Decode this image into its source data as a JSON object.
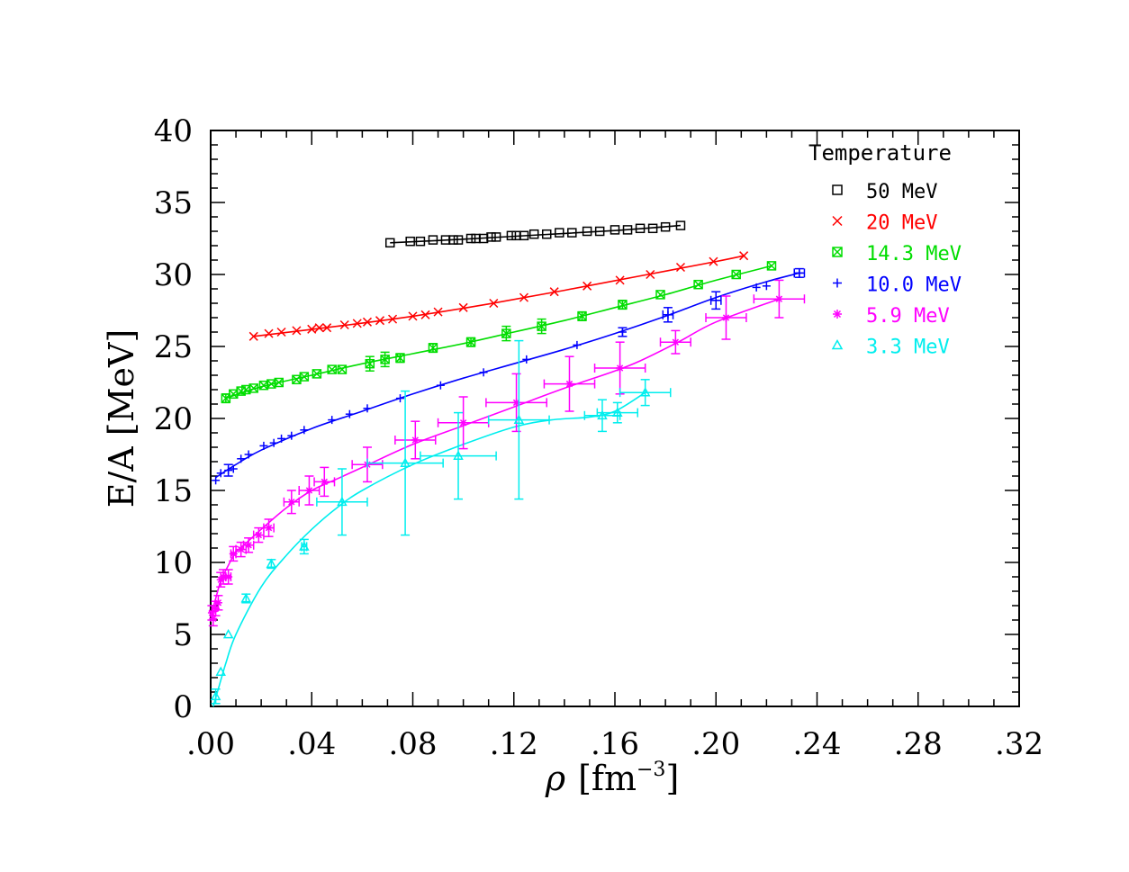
{
  "chart_data": {
    "type": "scatter",
    "title": "",
    "xlabel": {
      "symbol": "ρ",
      "unit_prefix": "[fm",
      "unit_exp": "−3",
      "unit_suffix": "]"
    },
    "ylabel": "E/A  [MeV]",
    "xlim": [
      0,
      0.32
    ],
    "ylim": [
      0,
      40
    ],
    "x_ticks": [
      ".00",
      ".04",
      ".08",
      ".12",
      ".16",
      ".20",
      ".24",
      ".28",
      ".32"
    ],
    "y_ticks": [
      "0",
      "5",
      "10",
      "15",
      "20",
      "25",
      "30",
      "35",
      "40"
    ],
    "legend_title": "Temperature",
    "legend_position": "top-right",
    "series": [
      {
        "name": "50 MeV",
        "color": "#000000",
        "marker": "square",
        "points": [
          [
            0.071,
            32.2,
            0,
            0
          ],
          [
            0.079,
            32.3,
            0,
            0
          ],
          [
            0.083,
            32.3,
            0,
            0
          ],
          [
            0.088,
            32.4,
            0,
            0
          ],
          [
            0.093,
            32.4,
            0,
            0
          ],
          [
            0.096,
            32.4,
            0,
            0
          ],
          [
            0.098,
            32.4,
            0,
            0
          ],
          [
            0.103,
            32.5,
            0,
            0
          ],
          [
            0.105,
            32.5,
            0,
            0
          ],
          [
            0.108,
            32.5,
            0,
            0
          ],
          [
            0.111,
            32.6,
            0,
            0
          ],
          [
            0.113,
            32.6,
            0,
            0
          ],
          [
            0.119,
            32.7,
            0,
            0
          ],
          [
            0.121,
            32.7,
            0,
            0
          ],
          [
            0.124,
            32.7,
            0,
            0
          ],
          [
            0.128,
            32.8,
            0,
            0
          ],
          [
            0.133,
            32.8,
            0,
            0
          ],
          [
            0.138,
            32.9,
            0,
            0
          ],
          [
            0.143,
            32.9,
            0,
            0
          ],
          [
            0.149,
            33.0,
            0,
            0
          ],
          [
            0.154,
            33.0,
            0,
            0
          ],
          [
            0.16,
            33.1,
            0,
            0
          ],
          [
            0.165,
            33.1,
            0,
            0
          ],
          [
            0.17,
            33.2,
            0,
            0
          ],
          [
            0.175,
            33.2,
            0,
            0
          ],
          [
            0.18,
            33.3,
            0,
            0
          ],
          [
            0.186,
            33.4,
            0,
            0
          ]
        ],
        "curve": [
          [
            0.071,
            32.2
          ],
          [
            0.1,
            32.45
          ],
          [
            0.13,
            32.75
          ],
          [
            0.16,
            33.05
          ],
          [
            0.186,
            33.4
          ]
        ]
      },
      {
        "name": "20 MeV",
        "color": "#ff0000",
        "marker": "cross",
        "points": [
          [
            0.017,
            25.7,
            0,
            0
          ],
          [
            0.023,
            25.9,
            0,
            0
          ],
          [
            0.028,
            26.0,
            0,
            0
          ],
          [
            0.034,
            26.1,
            0,
            0
          ],
          [
            0.04,
            26.2,
            0,
            0
          ],
          [
            0.043,
            26.3,
            0,
            0
          ],
          [
            0.046,
            26.3,
            0,
            0
          ],
          [
            0.053,
            26.5,
            0,
            0
          ],
          [
            0.058,
            26.6,
            0,
            0
          ],
          [
            0.062,
            26.7,
            0,
            0
          ],
          [
            0.067,
            26.8,
            0,
            0
          ],
          [
            0.072,
            26.9,
            0,
            0
          ],
          [
            0.08,
            27.1,
            0,
            0
          ],
          [
            0.085,
            27.2,
            0,
            0
          ],
          [
            0.09,
            27.4,
            0,
            0
          ],
          [
            0.1,
            27.7,
            0,
            0
          ],
          [
            0.112,
            28.0,
            0,
            0
          ],
          [
            0.124,
            28.4,
            0,
            0
          ],
          [
            0.136,
            28.8,
            0,
            0
          ],
          [
            0.149,
            29.2,
            0,
            0
          ],
          [
            0.162,
            29.6,
            0,
            0
          ],
          [
            0.174,
            30.0,
            0,
            0
          ],
          [
            0.186,
            30.5,
            0,
            0
          ],
          [
            0.199,
            30.9,
            0,
            0
          ],
          [
            0.211,
            31.3,
            0,
            0
          ]
        ],
        "curve": [
          [
            0.017,
            25.7
          ],
          [
            0.05,
            26.4
          ],
          [
            0.08,
            27.1
          ],
          [
            0.11,
            27.95
          ],
          [
            0.14,
            28.9
          ],
          [
            0.17,
            29.9
          ],
          [
            0.2,
            30.9
          ],
          [
            0.211,
            31.3
          ]
        ]
      },
      {
        "name": "14.3 MeV",
        "color": "#00dd00",
        "marker": "boxcross",
        "points": [
          [
            0.006,
            21.4,
            0,
            0.3
          ],
          [
            0.009,
            21.7,
            0,
            0
          ],
          [
            0.012,
            21.9,
            0,
            0
          ],
          [
            0.014,
            22.0,
            0,
            0
          ],
          [
            0.017,
            22.1,
            0,
            0
          ],
          [
            0.021,
            22.3,
            0,
            0
          ],
          [
            0.024,
            22.4,
            0,
            0
          ],
          [
            0.027,
            22.5,
            0,
            0
          ],
          [
            0.034,
            22.7,
            0,
            0
          ],
          [
            0.037,
            22.9,
            0,
            0
          ],
          [
            0.042,
            23.1,
            0,
            0
          ],
          [
            0.048,
            23.4,
            0,
            0
          ],
          [
            0.052,
            23.4,
            0,
            0
          ],
          [
            0.063,
            23.8,
            0,
            0.5
          ],
          [
            0.069,
            24.1,
            0,
            0.5
          ],
          [
            0.075,
            24.2,
            0,
            0.3
          ],
          [
            0.088,
            24.9,
            0,
            0.3
          ],
          [
            0.103,
            25.3,
            0,
            0.3
          ],
          [
            0.117,
            25.9,
            0,
            0.5
          ],
          [
            0.131,
            26.4,
            0,
            0.5
          ],
          [
            0.147,
            27.1,
            0,
            0.3
          ],
          [
            0.163,
            27.9,
            0,
            0.3
          ],
          [
            0.178,
            28.6,
            0,
            0
          ],
          [
            0.193,
            29.3,
            0,
            0
          ],
          [
            0.208,
            30.0,
            0,
            0
          ],
          [
            0.222,
            30.6,
            0,
            0
          ]
        ],
        "curve": [
          [
            0.006,
            21.4
          ],
          [
            0.02,
            22.2
          ],
          [
            0.04,
            23.0
          ],
          [
            0.06,
            23.8
          ],
          [
            0.08,
            24.5
          ],
          [
            0.1,
            25.2
          ],
          [
            0.12,
            26.0
          ],
          [
            0.14,
            26.8
          ],
          [
            0.16,
            27.7
          ],
          [
            0.18,
            28.6
          ],
          [
            0.2,
            29.6
          ],
          [
            0.222,
            30.6
          ]
        ]
      },
      {
        "name": "10.0 MeV",
        "color": "#0000ff",
        "marker": "plus",
        "points": [
          [
            0.002,
            15.7,
            0,
            0
          ],
          [
            0.004,
            16.2,
            0,
            0
          ],
          [
            0.007,
            16.4,
            0,
            0.4
          ],
          [
            0.009,
            16.5,
            0,
            0
          ],
          [
            0.012,
            17.2,
            0,
            0
          ],
          [
            0.015,
            17.5,
            0,
            0
          ],
          [
            0.021,
            18.1,
            0,
            0
          ],
          [
            0.025,
            18.3,
            0,
            0
          ],
          [
            0.028,
            18.6,
            0,
            0
          ],
          [
            0.032,
            18.8,
            0,
            0
          ],
          [
            0.037,
            19.2,
            0,
            0
          ],
          [
            0.048,
            19.9,
            0,
            0
          ],
          [
            0.055,
            20.3,
            0,
            0
          ],
          [
            0.062,
            20.7,
            0,
            0
          ],
          [
            0.075,
            21.4,
            0,
            0
          ],
          [
            0.091,
            22.3,
            0,
            0
          ],
          [
            0.108,
            23.2,
            0,
            0
          ],
          [
            0.125,
            24.1,
            0,
            0
          ],
          [
            0.145,
            25.1,
            0,
            0
          ],
          [
            0.163,
            26.0,
            0,
            0.3
          ],
          [
            0.181,
            27.2,
            0.002,
            0.5
          ],
          [
            0.2,
            28.2,
            0.002,
            0.6
          ],
          [
            0.216,
            29.1,
            0,
            0
          ],
          [
            0.22,
            29.2,
            0,
            0
          ],
          [
            0.233,
            30.1,
            0.002,
            0.3
          ]
        ],
        "curve": [
          [
            0.002,
            15.9
          ],
          [
            0.01,
            16.8
          ],
          [
            0.02,
            17.8
          ],
          [
            0.04,
            19.3
          ],
          [
            0.06,
            20.5
          ],
          [
            0.08,
            21.7
          ],
          [
            0.1,
            22.8
          ],
          [
            0.12,
            23.8
          ],
          [
            0.14,
            24.8
          ],
          [
            0.16,
            25.9
          ],
          [
            0.18,
            27.1
          ],
          [
            0.2,
            28.4
          ],
          [
            0.22,
            29.5
          ],
          [
            0.233,
            30.1
          ]
        ]
      },
      {
        "name": "5.9 MeV",
        "color": "#ff00ff",
        "marker": "asterisk",
        "points": [
          [
            0.0005,
            6.5,
            0,
            0.5
          ],
          [
            0.001,
            6.1,
            0,
            0.5
          ],
          [
            0.002,
            6.8,
            0,
            0.5
          ],
          [
            0.003,
            7.2,
            0,
            0.5
          ],
          [
            0.004,
            8.8,
            0,
            0.5
          ],
          [
            0.005,
            9.0,
            0.001,
            0.5
          ],
          [
            0.007,
            9.0,
            0.001,
            0.5
          ],
          [
            0.009,
            10.6,
            0.001,
            0.5
          ],
          [
            0.012,
            10.9,
            0.002,
            0.5
          ],
          [
            0.015,
            11.2,
            0.002,
            0.5
          ],
          [
            0.019,
            11.9,
            0.002,
            0.5
          ],
          [
            0.023,
            12.4,
            0.002,
            0.6
          ],
          [
            0.032,
            14.2,
            0.003,
            0.8
          ],
          [
            0.039,
            15.0,
            0.004,
            1.0
          ],
          [
            0.045,
            15.6,
            0.004,
            1.0
          ],
          [
            0.062,
            16.8,
            0.006,
            1.2
          ],
          [
            0.081,
            18.5,
            0.008,
            1.3
          ],
          [
            0.1,
            19.7,
            0.01,
            1.8
          ],
          [
            0.121,
            21.1,
            0.012,
            2.0
          ],
          [
            0.142,
            22.4,
            0.01,
            1.9
          ],
          [
            0.162,
            23.5,
            0.01,
            1.8
          ],
          [
            0.184,
            25.3,
            0.006,
            0.8
          ],
          [
            0.204,
            27.0,
            0.008,
            1.5
          ],
          [
            0.225,
            28.3,
            0.01,
            1.3
          ]
        ],
        "curve": [
          [
            0.0,
            6.2
          ],
          [
            0.002,
            7.5
          ],
          [
            0.004,
            8.7
          ],
          [
            0.007,
            9.8
          ],
          [
            0.01,
            10.7
          ],
          [
            0.015,
            11.5
          ],
          [
            0.02,
            12.3
          ],
          [
            0.03,
            13.8
          ],
          [
            0.04,
            15.0
          ],
          [
            0.05,
            15.8
          ],
          [
            0.06,
            16.6
          ],
          [
            0.08,
            18.2
          ],
          [
            0.1,
            19.5
          ],
          [
            0.12,
            20.8
          ],
          [
            0.14,
            22.1
          ],
          [
            0.16,
            23.3
          ],
          [
            0.17,
            24.0
          ],
          [
            0.185,
            25.3
          ],
          [
            0.2,
            26.7
          ],
          [
            0.225,
            28.3
          ]
        ]
      },
      {
        "name": "3.3 MeV",
        "color": "#00eeee",
        "marker": "triangle",
        "points": [
          [
            0.002,
            0.7,
            0,
            0.5
          ],
          [
            0.004,
            2.4,
            0,
            0
          ],
          [
            0.007,
            5.0,
            0,
            0
          ],
          [
            0.014,
            7.5,
            0,
            0.3
          ],
          [
            0.024,
            9.9,
            0,
            0.3
          ],
          [
            0.037,
            11.1,
            0.001,
            0.5
          ],
          [
            0.052,
            14.2,
            0.01,
            2.3
          ],
          [
            0.077,
            16.9,
            0.015,
            5.0
          ],
          [
            0.098,
            17.4,
            0.015,
            3.0
          ],
          [
            0.122,
            19.9,
            0.012,
            5.5
          ],
          [
            0.155,
            20.2,
            0.007,
            1.1
          ],
          [
            0.161,
            20.4,
            0.008,
            0.7
          ],
          [
            0.172,
            21.8,
            0.01,
            0.9
          ]
        ],
        "curve": [
          [
            0.001,
            0.0
          ],
          [
            0.003,
            1.2
          ],
          [
            0.006,
            3.0
          ],
          [
            0.01,
            5.0
          ],
          [
            0.02,
            8.3
          ],
          [
            0.03,
            10.5
          ],
          [
            0.04,
            12.3
          ],
          [
            0.05,
            13.8
          ],
          [
            0.06,
            15.0
          ],
          [
            0.08,
            16.8
          ],
          [
            0.1,
            18.2
          ],
          [
            0.12,
            19.4
          ],
          [
            0.135,
            19.9
          ],
          [
            0.15,
            20.1
          ],
          [
            0.16,
            20.5
          ],
          [
            0.172,
            21.8
          ]
        ]
      }
    ]
  }
}
